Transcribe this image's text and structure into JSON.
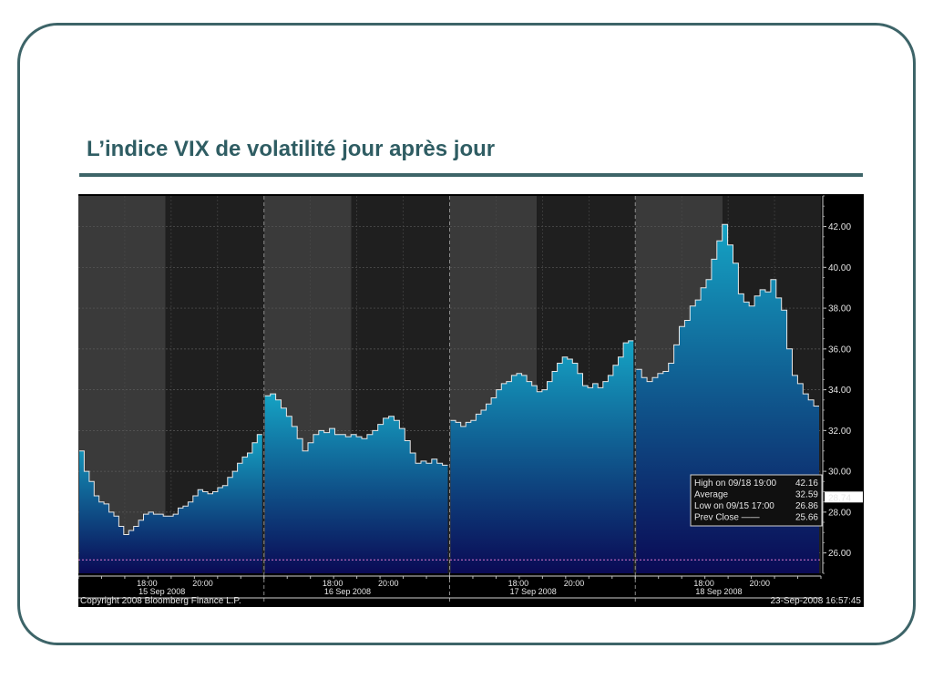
{
  "slide": {
    "title": "L’indice VIX de volatilité jour après jour"
  },
  "colors": {
    "frame": "#3d6468",
    "title": "#2f5d63",
    "area_top": "#15a3c4",
    "area_bottom": "#0a0a55",
    "line": "#e8e8e8",
    "band_light": "#3a3a3a",
    "band_dark": "#1f1f1f",
    "prev_close_line": "#e07bd0",
    "prev_close_text": "#e8821e"
  },
  "chart_data": {
    "type": "area",
    "source": "Copyright 2008 Bloomberg Finance L.P.",
    "timestamp": "23-Sep-2008 16:57:45",
    "ylim": [
      25.0,
      43.5
    ],
    "y_ticks": [
      "42.00",
      "40.00",
      "38.00",
      "36.00",
      "34.00",
      "32.00",
      "30.00",
      "28.00",
      "26.00"
    ],
    "y_tick_values": [
      42,
      40,
      38,
      36,
      34,
      32,
      30,
      28,
      26
    ],
    "current_value": "28.74",
    "current_value_num": 28.74,
    "prev_close_value": 25.66,
    "days": [
      {
        "label": "15 Sep 2008",
        "time_labels": [
          "18:00",
          "20:00"
        ],
        "values": [
          31.0,
          30.0,
          29.5,
          28.8,
          28.5,
          28.4,
          28.0,
          27.8,
          27.3,
          26.9,
          27.1,
          27.3,
          27.6,
          27.9,
          28.0,
          27.9,
          27.9,
          27.8,
          27.8,
          27.9,
          28.2,
          28.3,
          28.5,
          28.8,
          29.1,
          29.0,
          28.9,
          29.0,
          29.2,
          29.3,
          29.7,
          30.0,
          30.4,
          30.7,
          30.9,
          31.4,
          31.8
        ]
      },
      {
        "label": "16 Sep 2008",
        "time_labels": [
          "18:00",
          "20:00"
        ],
        "values": [
          33.7,
          33.8,
          33.5,
          33.1,
          32.7,
          32.2,
          31.6,
          31.0,
          31.4,
          31.8,
          32.0,
          31.9,
          32.1,
          31.8,
          31.8,
          31.7,
          31.8,
          31.7,
          31.6,
          31.8,
          32.0,
          32.3,
          32.6,
          32.7,
          32.5,
          32.1,
          31.5,
          30.9,
          30.4,
          30.5,
          30.4,
          30.6,
          30.4,
          30.3
        ]
      },
      {
        "label": "17 Sep 2008",
        "time_labels": [
          "18:00",
          "20:00"
        ],
        "values": [
          32.5,
          32.4,
          32.2,
          32.4,
          32.5,
          32.8,
          33.0,
          33.3,
          33.6,
          34.0,
          34.3,
          34.4,
          34.7,
          34.8,
          34.7,
          34.4,
          34.2,
          33.9,
          34.0,
          34.4,
          34.9,
          35.3,
          35.6,
          35.5,
          35.3,
          34.8,
          34.2,
          34.1,
          34.3,
          34.1,
          34.4,
          34.7,
          35.2,
          35.6,
          36.3,
          36.4
        ]
      },
      {
        "label": "18 Sep 2008",
        "time_labels": [
          "18:00",
          "20:00"
        ],
        "values": [
          35.0,
          34.6,
          34.4,
          34.6,
          34.8,
          34.9,
          35.3,
          36.2,
          37.1,
          37.4,
          38.1,
          38.4,
          39.0,
          39.4,
          40.4,
          41.3,
          42.1,
          41.1,
          40.2,
          38.7,
          38.3,
          38.1,
          38.6,
          38.9,
          38.8,
          39.4,
          38.5,
          37.9,
          36.0,
          34.7,
          34.3,
          33.8,
          33.5,
          33.2
        ]
      }
    ],
    "legend": {
      "rows": [
        {
          "label": "High on 09/18 19:00",
          "value": "42.16"
        },
        {
          "label": "Average",
          "value": "32.59"
        },
        {
          "label": "Low on 09/15 17:00",
          "value": "26.86"
        },
        {
          "label": "Prev Close ——",
          "value": "25.66"
        }
      ]
    }
  }
}
